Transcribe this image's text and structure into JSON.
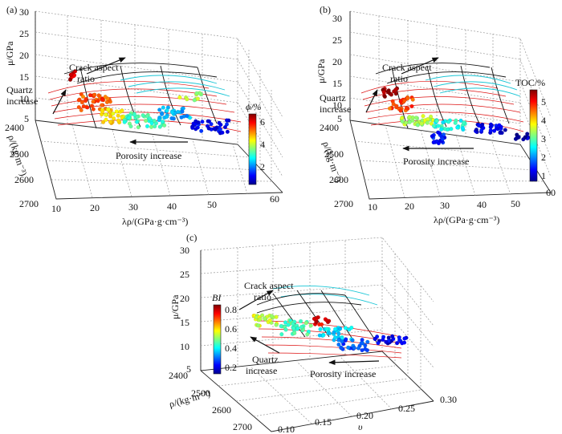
{
  "chart_data": [
    {
      "panel": "(a)",
      "type": "scatter3d",
      "xlabel": "λρ/(GPa·g·cm⁻³)",
      "ylabel": "ρ/(kg·m⁻³)",
      "zlabel": "μ/GPa",
      "x_ticks": [
        "10",
        "20",
        "30",
        "40",
        "50",
        "60"
      ],
      "y_ticks": [
        "2400",
        "2500",
        "2600",
        "2700"
      ],
      "z_ticks": [
        "5",
        "10",
        "15",
        "20",
        "25",
        "30"
      ],
      "colorbar": {
        "label": "ϕ/%",
        "ticks": [
          "2",
          "4",
          "6"
        ],
        "range": [
          0.5,
          6.8
        ]
      },
      "annotations": {
        "crack": [
          "Crack aspect",
          "ratio"
        ],
        "quartz": [
          "Quartz",
          "increase"
        ],
        "porosity": "Porosity increase"
      }
    },
    {
      "panel": "(b)",
      "type": "scatter3d",
      "xlabel": "λρ/(GPa·g·cm⁻³)",
      "ylabel": "ρ/(kg·m⁻³)",
      "zlabel": "μ/GPa",
      "x_ticks": [
        "10",
        "20",
        "30",
        "40",
        "50",
        "60"
      ],
      "y_ticks": [
        "2400",
        "2500",
        "2600",
        "2700"
      ],
      "z_ticks": [
        "5",
        "10",
        "15",
        "20",
        "25",
        "30"
      ],
      "colorbar": {
        "label": "TOC/%",
        "ticks": [
          "1",
          "2",
          "3",
          "4",
          "5"
        ],
        "range": [
          0.5,
          5.6
        ]
      },
      "annotations": {
        "crack": [
          "Crack aspect",
          "ratio"
        ],
        "quartz": [
          "Quartz",
          "increase"
        ],
        "porosity": "Porosity increase"
      }
    },
    {
      "panel": "(c)",
      "type": "scatter3d",
      "xlabel": "υ",
      "ylabel": "ρ/(kg·m⁻³)",
      "zlabel": "μ/GPa",
      "x_ticks": [
        "0.10",
        "0.15",
        "0.20",
        "0.25",
        "0.30"
      ],
      "y_ticks": [
        "2400",
        "2500",
        "2600",
        "2700"
      ],
      "z_ticks": [
        "5",
        "10",
        "15",
        "20",
        "25",
        "30"
      ],
      "colorbar": {
        "label": "BI",
        "ticks": [
          "0.2",
          "0.4",
          "0.6",
          "0.8"
        ],
        "range": [
          0.1,
          0.9
        ]
      },
      "annotations": {
        "crack": [
          "Crack aspect",
          "ratio"
        ],
        "quartz": [
          "Quartz",
          "increase"
        ],
        "porosity": "Porosity increase"
      }
    }
  ]
}
